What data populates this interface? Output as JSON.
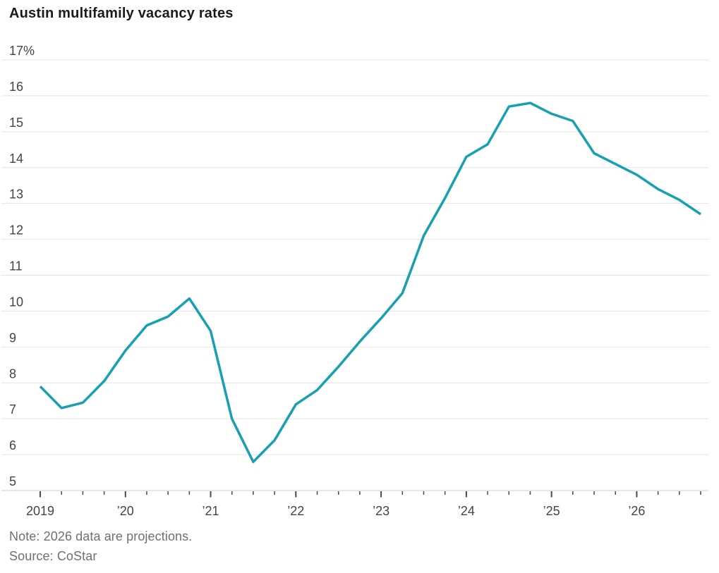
{
  "title": "Austin multifamily vacancy rates",
  "note": "Note: 2026 data are projections.",
  "source": "Source: CoStar",
  "colors": {
    "line": "#17A0B1",
    "grid": "#E4E4E4",
    "axis_line": "#CFCFCF",
    "tick": "#4A4A4A",
    "axis_label": "#444444",
    "title": "#1B1B1B",
    "note": "#707070"
  },
  "chart_data": {
    "type": "line",
    "title": "Austin multifamily vacancy rates",
    "series_name": "Austin multifamily vacancy rate (%)",
    "x": [
      "2019 Q1",
      "2019 Q2",
      "2019 Q3",
      "2019 Q4",
      "2020 Q1",
      "2020 Q2",
      "2020 Q3",
      "2020 Q4",
      "2021 Q1",
      "2021 Q2",
      "2021 Q3",
      "2021 Q4",
      "2022 Q1",
      "2022 Q2",
      "2022 Q3",
      "2022 Q4",
      "2023 Q1",
      "2023 Q2",
      "2023 Q3",
      "2023 Q4",
      "2024 Q1",
      "2024 Q2",
      "2024 Q3",
      "2024 Q4",
      "2025 Q1",
      "2025 Q2",
      "2025 Q3",
      "2025 Q4",
      "2026 Q1",
      "2026 Q2",
      "2026 Q3",
      "2026 Q4"
    ],
    "values": [
      7.9,
      7.3,
      7.45,
      8.05,
      8.9,
      9.6,
      9.85,
      10.35,
      9.45,
      7.0,
      5.8,
      6.4,
      7.4,
      7.8,
      8.45,
      9.15,
      9.8,
      10.5,
      12.1,
      13.15,
      14.3,
      14.65,
      15.7,
      15.8,
      15.5,
      15.3,
      14.4,
      14.1,
      13.8,
      13.4,
      13.1,
      12.7
    ],
    "ylim": [
      5,
      17
    ],
    "y_tick_values": [
      17,
      16,
      15,
      14,
      13,
      12,
      11,
      10,
      9,
      8,
      7,
      6,
      5
    ],
    "y_tick_labels": [
      "17%",
      "16",
      "15",
      "14",
      "13",
      "12",
      "11",
      "10",
      "9",
      "8",
      "7",
      "6",
      "5"
    ],
    "x_year_labels": [
      "2019",
      "’20",
      "’21",
      "’22",
      "’23",
      "’24",
      "’25",
      "’26"
    ],
    "grid": "horizontal",
    "legend": "none",
    "projection_note": "2026 data are projections"
  }
}
